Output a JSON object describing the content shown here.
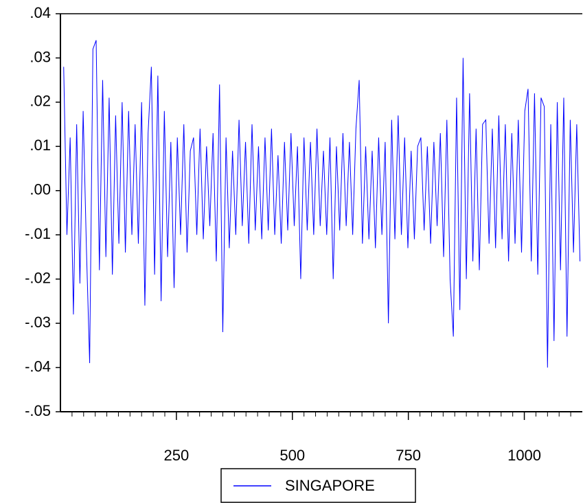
{
  "chart_data": {
    "type": "line",
    "x": [
      7,
      14,
      21,
      28,
      35,
      42,
      49,
      56,
      63,
      70,
      77,
      84,
      91,
      98,
      105,
      112,
      119,
      126,
      133,
      140,
      147,
      154,
      161,
      168,
      175,
      182,
      189,
      196,
      203,
      210,
      217,
      224,
      231,
      238,
      245,
      252,
      259,
      266,
      273,
      280,
      287,
      294,
      301,
      308,
      315,
      322,
      329,
      336,
      343,
      350,
      357,
      364,
      371,
      378,
      385,
      392,
      399,
      406,
      413,
      420,
      427,
      434,
      441,
      448,
      455,
      462,
      469,
      476,
      483,
      490,
      497,
      504,
      511,
      518,
      525,
      532,
      539,
      546,
      553,
      560,
      567,
      574,
      581,
      588,
      595,
      602,
      609,
      616,
      623,
      630,
      637,
      644,
      651,
      658,
      665,
      672,
      679,
      686,
      693,
      700,
      707,
      714,
      721,
      728,
      735,
      742,
      749,
      756,
      763,
      770,
      777,
      784,
      791,
      798,
      805,
      812,
      819,
      826,
      833,
      840,
      847,
      854,
      861,
      868,
      875,
      882,
      889,
      896,
      903,
      910,
      917,
      924,
      931,
      938,
      945,
      952,
      959,
      966,
      973,
      980,
      987,
      994,
      1001,
      1008,
      1015,
      1022,
      1029,
      1036,
      1043,
      1050,
      1057,
      1064,
      1071,
      1078,
      1085,
      1092,
      1099,
      1106,
      1113,
      1120
    ],
    "series": [
      {
        "name": "SINGAPORE",
        "color": "#0000ff",
        "values": [
          0.028,
          -0.01,
          0.012,
          -0.028,
          0.015,
          -0.021,
          0.018,
          -0.013,
          -0.039,
          0.032,
          0.034,
          -0.018,
          0.025,
          -0.015,
          0.021,
          -0.019,
          0.017,
          -0.012,
          0.02,
          -0.014,
          0.018,
          -0.01,
          0.015,
          -0.012,
          0.02,
          -0.026,
          0.013,
          0.028,
          -0.019,
          0.026,
          -0.025,
          0.018,
          -0.015,
          0.011,
          -0.022,
          0.012,
          -0.01,
          0.015,
          -0.014,
          0.009,
          0.012,
          -0.01,
          0.014,
          -0.011,
          0.01,
          -0.008,
          0.013,
          -0.016,
          0.024,
          -0.032,
          0.012,
          -0.013,
          0.009,
          -0.01,
          0.016,
          -0.008,
          0.011,
          -0.012,
          0.015,
          -0.009,
          0.01,
          -0.011,
          0.012,
          -0.009,
          0.014,
          -0.01,
          0.008,
          -0.012,
          0.011,
          -0.009,
          0.013,
          -0.008,
          0.01,
          -0.02,
          0.012,
          -0.009,
          0.011,
          -0.01,
          0.014,
          -0.008,
          0.009,
          -0.01,
          0.012,
          -0.02,
          0.01,
          -0.009,
          0.013,
          -0.008,
          0.011,
          -0.01,
          0.014,
          0.025,
          -0.012,
          0.01,
          -0.011,
          0.009,
          -0.013,
          0.012,
          -0.01,
          0.011,
          -0.03,
          0.016,
          -0.011,
          0.017,
          -0.01,
          0.012,
          -0.013,
          0.009,
          -0.011,
          0.01,
          0.012,
          -0.009,
          0.01,
          -0.012,
          0.011,
          -0.008,
          0.013,
          -0.015,
          0.016,
          -0.02,
          -0.033,
          0.021,
          -0.027,
          0.03,
          -0.02,
          0.022,
          -0.016,
          0.014,
          -0.018,
          0.015,
          0.016,
          -0.012,
          0.014,
          -0.013,
          0.017,
          -0.011,
          0.015,
          -0.016,
          0.013,
          -0.012,
          0.016,
          -0.014,
          0.018,
          0.023,
          -0.016,
          0.022,
          -0.019,
          0.021,
          0.019,
          -0.04,
          0.015,
          -0.034,
          0.02,
          -0.018,
          0.021,
          -0.033,
          0.016,
          -0.014,
          0.015,
          -0.016
        ]
      }
    ],
    "xlim": [
      0,
      1125
    ],
    "xticks": [
      250,
      500,
      750,
      1000
    ],
    "xminorticks": [
      25,
      50,
      75,
      100,
      125,
      150,
      175,
      200,
      225,
      275,
      300,
      325,
      350,
      375,
      400,
      425,
      450,
      475,
      525,
      550,
      575,
      600,
      625,
      650,
      675,
      700,
      725,
      775,
      800,
      825,
      850,
      875,
      900,
      925,
      950,
      975,
      1025,
      1050,
      1075,
      1100
    ],
    "ylim": [
      -0.05,
      0.04
    ],
    "yticks": [
      {
        "value": -0.05,
        "label": "-.05"
      },
      {
        "value": -0.04,
        "label": "-.04"
      },
      {
        "value": -0.03,
        "label": "-.03"
      },
      {
        "value": -0.02,
        "label": "-.02"
      },
      {
        "value": -0.01,
        "label": "-.01"
      },
      {
        "value": 0,
        "label": ".00"
      },
      {
        "value": 0.01,
        "label": ".01"
      },
      {
        "value": 0.02,
        "label": ".02"
      },
      {
        "value": 0.03,
        "label": ".03"
      },
      {
        "value": 0.04,
        "label": ".04"
      }
    ],
    "legend": "bottom"
  }
}
